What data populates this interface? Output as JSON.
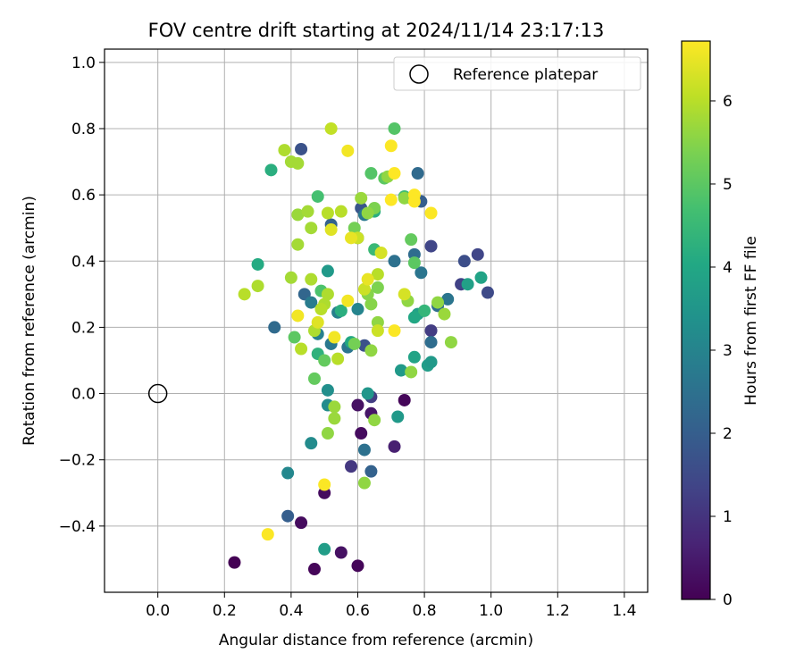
{
  "chart_data": {
    "type": "scatter",
    "title": "FOV centre drift starting at 2024/11/14 23:17:13",
    "xlabel": "Angular distance from reference (arcmin)",
    "ylabel": "Rotation from reference (arcmin)",
    "xlim": [
      -0.16,
      1.47
    ],
    "ylim": [
      -0.6,
      1.04
    ],
    "x_ticks": [
      "0.0",
      "0.2",
      "0.4",
      "0.6",
      "0.8",
      "1.0",
      "1.2",
      "1.4"
    ],
    "x_tick_values": [
      0,
      0.2,
      0.4,
      0.6,
      0.8,
      1.0,
      1.2,
      1.4
    ],
    "y_ticks": [
      "−0.4",
      "−0.2",
      "0.0",
      "0.2",
      "0.4",
      "0.6",
      "0.8",
      "1.0"
    ],
    "y_tick_values": [
      -0.4,
      -0.2,
      0,
      0.2,
      0.4,
      0.6,
      0.8,
      1.0
    ],
    "grid": true,
    "legend": {
      "placement": "upper right",
      "entries": [
        "Reference platepar"
      ]
    },
    "reference_point": {
      "x": 0.0,
      "y": 0.0
    },
    "colorbar": {
      "label": "Hours from first FF file",
      "colormap": "viridis",
      "min": 0,
      "max": 6.72,
      "ticks": [
        "0",
        "1",
        "2",
        "3",
        "4",
        "5",
        "6"
      ],
      "tick_values": [
        0,
        1,
        2,
        3,
        4,
        5,
        6
      ]
    },
    "points": [
      {
        "x": 0.23,
        "y": -0.51,
        "c": 0.0
      },
      {
        "x": 0.47,
        "y": -0.53,
        "c": 0.1
      },
      {
        "x": 0.43,
        "y": -0.39,
        "c": 0.2
      },
      {
        "x": 0.55,
        "y": -0.48,
        "c": 0.3
      },
      {
        "x": 0.6,
        "y": -0.52,
        "c": 0.1
      },
      {
        "x": 0.5,
        "y": -0.3,
        "c": 0.2
      },
      {
        "x": 0.61,
        "y": -0.12,
        "c": 0.2
      },
      {
        "x": 0.6,
        "y": -0.035,
        "c": 0.3
      },
      {
        "x": 0.74,
        "y": -0.02,
        "c": 0.1
      },
      {
        "x": 0.64,
        "y": -0.06,
        "c": 0.4
      },
      {
        "x": 0.71,
        "y": -0.16,
        "c": 0.6
      },
      {
        "x": 0.58,
        "y": -0.22,
        "c": 1.1
      },
      {
        "x": 0.64,
        "y": -0.01,
        "c": 1.2
      },
      {
        "x": 0.82,
        "y": 0.19,
        "c": 1.2
      },
      {
        "x": 0.82,
        "y": 0.445,
        "c": 1.4
      },
      {
        "x": 0.91,
        "y": 0.33,
        "c": 1.3
      },
      {
        "x": 0.96,
        "y": 0.42,
        "c": 1.4
      },
      {
        "x": 0.99,
        "y": 0.305,
        "c": 1.5
      },
      {
        "x": 0.92,
        "y": 0.4,
        "c": 1.6
      },
      {
        "x": 0.43,
        "y": 0.738,
        "c": 1.7
      },
      {
        "x": 0.61,
        "y": 0.56,
        "c": 1.8
      },
      {
        "x": 0.62,
        "y": 0.145,
        "c": 1.7
      },
      {
        "x": 0.39,
        "y": -0.37,
        "c": 2.0
      },
      {
        "x": 0.64,
        "y": -0.235,
        "c": 2.1
      },
      {
        "x": 0.62,
        "y": -0.17,
        "c": 2.5
      },
      {
        "x": 0.35,
        "y": 0.2,
        "c": 2.3
      },
      {
        "x": 0.44,
        "y": 0.3,
        "c": 2.2
      },
      {
        "x": 0.52,
        "y": 0.51,
        "c": 2.1
      },
      {
        "x": 0.6,
        "y": 0.47,
        "c": 2.2
      },
      {
        "x": 0.78,
        "y": 0.665,
        "c": 2.3
      },
      {
        "x": 0.79,
        "y": 0.58,
        "c": 2.0
      },
      {
        "x": 0.77,
        "y": 0.42,
        "c": 2.4
      },
      {
        "x": 0.79,
        "y": 0.365,
        "c": 2.6
      },
      {
        "x": 0.82,
        "y": 0.155,
        "c": 2.4
      },
      {
        "x": 0.87,
        "y": 0.285,
        "c": 2.6
      },
      {
        "x": 0.84,
        "y": 0.265,
        "c": 2.4
      },
      {
        "x": 0.71,
        "y": 0.4,
        "c": 2.5
      },
      {
        "x": 0.57,
        "y": 0.14,
        "c": 2.6
      },
      {
        "x": 0.52,
        "y": 0.15,
        "c": 2.7
      },
      {
        "x": 0.54,
        "y": 0.245,
        "c": 2.9
      },
      {
        "x": 0.46,
        "y": 0.275,
        "c": 2.8
      },
      {
        "x": 0.48,
        "y": 0.18,
        "c": 2.9
      },
      {
        "x": 0.62,
        "y": 0.54,
        "c": 2.7
      },
      {
        "x": 0.6,
        "y": 0.255,
        "c": 3.0
      },
      {
        "x": 0.39,
        "y": -0.24,
        "c": 3.1
      },
      {
        "x": 0.46,
        "y": -0.15,
        "c": 3.2
      },
      {
        "x": 0.51,
        "y": -0.035,
        "c": 3.2
      },
      {
        "x": 0.51,
        "y": 0.01,
        "c": 3.3
      },
      {
        "x": 0.63,
        "y": 0.0,
        "c": 3.5
      },
      {
        "x": 0.72,
        "y": -0.07,
        "c": 3.6
      },
      {
        "x": 0.73,
        "y": 0.07,
        "c": 3.6
      },
      {
        "x": 0.5,
        "y": -0.47,
        "c": 3.7
      },
      {
        "x": 0.51,
        "y": 0.37,
        "c": 3.6
      },
      {
        "x": 0.81,
        "y": 0.085,
        "c": 3.7
      },
      {
        "x": 0.82,
        "y": 0.095,
        "c": 3.6
      },
      {
        "x": 0.78,
        "y": 0.24,
        "c": 3.8
      },
      {
        "x": 0.93,
        "y": 0.33,
        "c": 3.8
      },
      {
        "x": 0.97,
        "y": 0.35,
        "c": 3.9
      },
      {
        "x": 0.77,
        "y": 0.11,
        "c": 3.9
      },
      {
        "x": 0.58,
        "y": 0.155,
        "c": 4.0
      },
      {
        "x": 0.34,
        "y": 0.675,
        "c": 4.2
      },
      {
        "x": 0.3,
        "y": 0.39,
        "c": 4.1
      },
      {
        "x": 0.48,
        "y": 0.12,
        "c": 4.3
      },
      {
        "x": 0.55,
        "y": 0.25,
        "c": 4.2
      },
      {
        "x": 0.65,
        "y": 0.55,
        "c": 4.2
      },
      {
        "x": 0.8,
        "y": 0.25,
        "c": 4.4
      },
      {
        "x": 0.77,
        "y": 0.23,
        "c": 4.0
      },
      {
        "x": 0.65,
        "y": 0.435,
        "c": 4.5
      },
      {
        "x": 0.74,
        "y": 0.595,
        "c": 4.6
      },
      {
        "x": 0.48,
        "y": 0.595,
        "c": 4.7
      },
      {
        "x": 0.49,
        "y": 0.31,
        "c": 4.8
      },
      {
        "x": 0.71,
        "y": 0.8,
        "c": 4.9
      },
      {
        "x": 0.64,
        "y": 0.665,
        "c": 4.9
      },
      {
        "x": 0.68,
        "y": 0.65,
        "c": 5.0
      },
      {
        "x": 0.76,
        "y": 0.59,
        "c": 4.9
      },
      {
        "x": 0.76,
        "y": 0.465,
        "c": 5.1
      },
      {
        "x": 0.77,
        "y": 0.395,
        "c": 5.0
      },
      {
        "x": 0.41,
        "y": 0.17,
        "c": 5.0
      },
      {
        "x": 0.47,
        "y": 0.045,
        "c": 5.1
      },
      {
        "x": 0.5,
        "y": 0.1,
        "c": 5.1
      },
      {
        "x": 0.59,
        "y": 0.5,
        "c": 5.3
      },
      {
        "x": 0.59,
        "y": 0.15,
        "c": 5.3
      },
      {
        "x": 0.65,
        "y": 0.56,
        "c": 5.4
      },
      {
        "x": 0.66,
        "y": 0.32,
        "c": 5.4
      },
      {
        "x": 0.63,
        "y": 0.3,
        "c": 5.5
      },
      {
        "x": 0.64,
        "y": 0.13,
        "c": 5.6
      },
      {
        "x": 0.64,
        "y": 0.27,
        "c": 5.5
      },
      {
        "x": 0.66,
        "y": 0.215,
        "c": 5.6
      },
      {
        "x": 0.63,
        "y": 0.545,
        "c": 5.6
      },
      {
        "x": 0.65,
        "y": -0.08,
        "c": 5.6
      },
      {
        "x": 0.62,
        "y": -0.27,
        "c": 5.6
      },
      {
        "x": 0.51,
        "y": -0.12,
        "c": 5.6
      },
      {
        "x": 0.53,
        "y": -0.075,
        "c": 5.7
      },
      {
        "x": 0.53,
        "y": -0.04,
        "c": 5.7
      },
      {
        "x": 0.76,
        "y": 0.065,
        "c": 5.6
      },
      {
        "x": 0.75,
        "y": 0.28,
        "c": 5.6
      },
      {
        "x": 0.84,
        "y": 0.275,
        "c": 5.6
      },
      {
        "x": 0.86,
        "y": 0.24,
        "c": 5.7
      },
      {
        "x": 0.88,
        "y": 0.155,
        "c": 5.6
      },
      {
        "x": 0.74,
        "y": 0.59,
        "c": 5.6
      },
      {
        "x": 0.69,
        "y": 0.655,
        "c": 5.6
      },
      {
        "x": 0.61,
        "y": 0.59,
        "c": 5.7
      },
      {
        "x": 0.42,
        "y": 0.695,
        "c": 5.8
      },
      {
        "x": 0.4,
        "y": 0.7,
        "c": 5.8
      },
      {
        "x": 0.38,
        "y": 0.735,
        "c": 5.9
      },
      {
        "x": 0.42,
        "y": 0.54,
        "c": 5.7
      },
      {
        "x": 0.45,
        "y": 0.55,
        "c": 5.8
      },
      {
        "x": 0.46,
        "y": 0.5,
        "c": 5.8
      },
      {
        "x": 0.42,
        "y": 0.45,
        "c": 5.8
      },
      {
        "x": 0.4,
        "y": 0.35,
        "c": 5.8
      },
      {
        "x": 0.46,
        "y": 0.345,
        "c": 5.9
      },
      {
        "x": 0.3,
        "y": 0.325,
        "c": 5.9
      },
      {
        "x": 0.26,
        "y": 0.3,
        "c": 6.0
      },
      {
        "x": 0.5,
        "y": 0.27,
        "c": 5.9
      },
      {
        "x": 0.49,
        "y": 0.255,
        "c": 6.0
      },
      {
        "x": 0.51,
        "y": 0.3,
        "c": 5.9
      },
      {
        "x": 0.47,
        "y": 0.19,
        "c": 5.9
      },
      {
        "x": 0.43,
        "y": 0.135,
        "c": 6.0
      },
      {
        "x": 0.54,
        "y": 0.105,
        "c": 6.0
      },
      {
        "x": 0.52,
        "y": 0.8,
        "c": 6.1
      },
      {
        "x": 0.51,
        "y": 0.545,
        "c": 6.0
      },
      {
        "x": 0.55,
        "y": 0.55,
        "c": 6.0
      },
      {
        "x": 0.6,
        "y": 0.47,
        "c": 6.2
      },
      {
        "x": 0.66,
        "y": 0.36,
        "c": 6.0
      },
      {
        "x": 0.62,
        "y": 0.315,
        "c": 6.2
      },
      {
        "x": 0.67,
        "y": 0.425,
        "c": 6.3
      },
      {
        "x": 0.66,
        "y": 0.19,
        "c": 6.2
      },
      {
        "x": 0.74,
        "y": 0.3,
        "c": 6.3
      },
      {
        "x": 0.48,
        "y": 0.215,
        "c": 6.4
      },
      {
        "x": 0.52,
        "y": 0.495,
        "c": 6.4
      },
      {
        "x": 0.58,
        "y": 0.47,
        "c": 6.5
      },
      {
        "x": 0.63,
        "y": 0.345,
        "c": 6.5
      },
      {
        "x": 0.42,
        "y": 0.235,
        "c": 6.6
      },
      {
        "x": 0.53,
        "y": 0.17,
        "c": 6.6
      },
      {
        "x": 0.57,
        "y": 0.28,
        "c": 6.6
      },
      {
        "x": 0.71,
        "y": 0.19,
        "c": 6.7
      },
      {
        "x": 0.57,
        "y": 0.733,
        "c": 6.6
      },
      {
        "x": 0.7,
        "y": 0.748,
        "c": 6.7
      },
      {
        "x": 0.71,
        "y": 0.665,
        "c": 6.8
      },
      {
        "x": 0.77,
        "y": 0.6,
        "c": 6.8
      },
      {
        "x": 0.77,
        "y": 0.58,
        "c": 6.8
      },
      {
        "x": 0.7,
        "y": 0.585,
        "c": 6.8
      },
      {
        "x": 0.82,
        "y": 0.545,
        "c": 6.7
      },
      {
        "x": 0.5,
        "y": -0.275,
        "c": 6.7
      },
      {
        "x": 0.33,
        "y": -0.425,
        "c": 6.7
      }
    ]
  }
}
